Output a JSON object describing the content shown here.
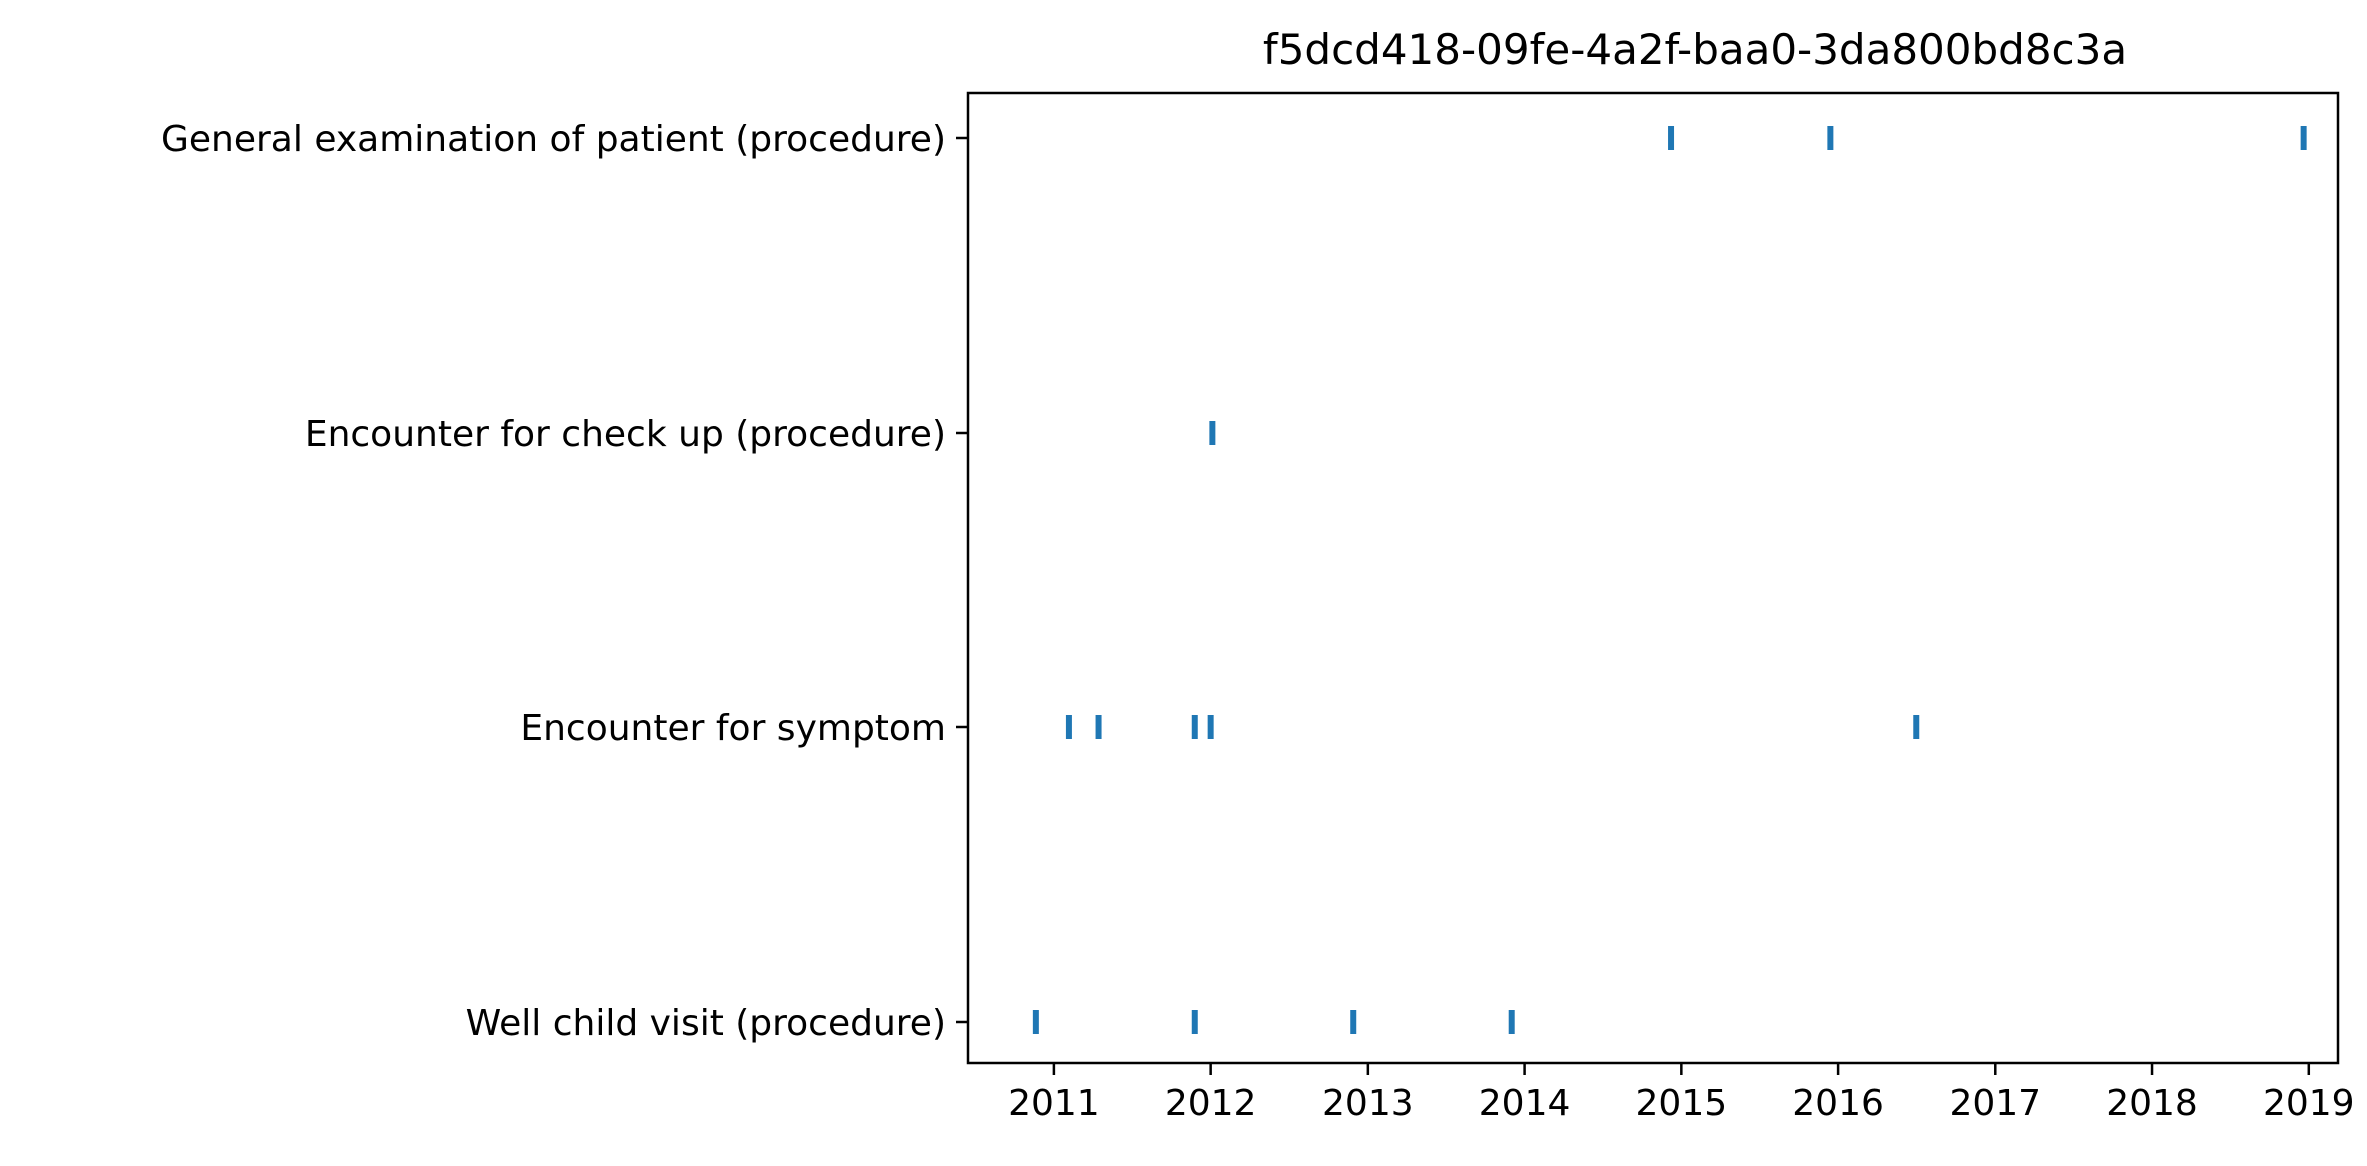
{
  "chart_data": {
    "type": "scatter",
    "title": "f5dcd418-09fe-4a2f-baa0-3da800bd8c3a",
    "xlabel": "",
    "ylabel": "",
    "x_ticks": [
      "2011",
      "2012",
      "2013",
      "2014",
      "2015",
      "2016",
      "2017",
      "2018",
      "2019"
    ],
    "xlim": [
      "2010-06-15",
      "2019-03-10"
    ],
    "categories": [
      "Well child visit (procedure)",
      "Encounter for symptom",
      "Encounter for check up (procedure)",
      "General examination of patient (procedure)"
    ],
    "marker": "vertical-line",
    "color": "#1f77b4",
    "grid": false,
    "legend": "none",
    "events": [
      {
        "category": "Well child visit (procedure)",
        "dates": [
          "2010-11-20",
          "2011-11-25",
          "2012-11-28",
          "2013-12-02"
        ]
      },
      {
        "category": "Encounter for symptom",
        "dates": [
          "2011-02-05",
          "2011-04-15",
          "2011-11-25",
          "2012-01-01",
          "2016-07-01"
        ]
      },
      {
        "category": "Encounter for check up (procedure)",
        "dates": [
          "2012-01-05"
        ]
      },
      {
        "category": "General examination of patient (procedure)",
        "dates": [
          "2014-12-08",
          "2015-12-14",
          "2018-12-20"
        ]
      }
    ]
  }
}
